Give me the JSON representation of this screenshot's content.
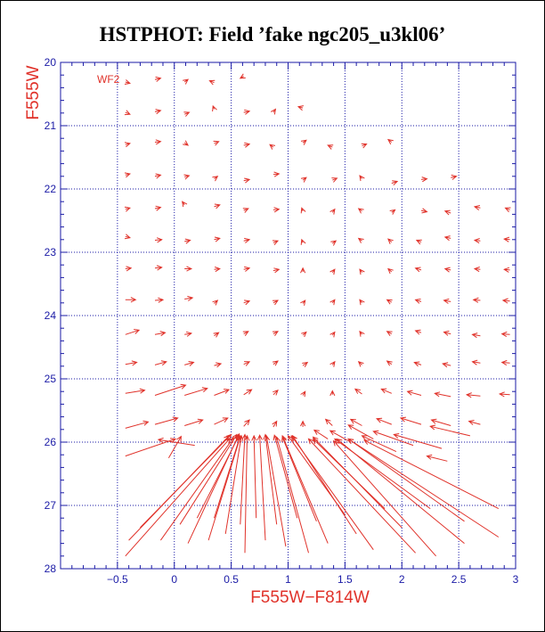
{
  "title": "HSTPHOT: Field ’fake ngc205_u3kl06’",
  "chart_data": {
    "type": "quiver",
    "title": "HSTPHOT: Field ’fake ngc205_u3kl06’",
    "xlabel": "F555W−F814W",
    "ylabel": "F555W",
    "panel_label": "WF2",
    "xlim": [
      -1.0,
      3.0
    ],
    "ylim": [
      28,
      20
    ],
    "y_inverted": true,
    "grid": true,
    "colors": {
      "axes": "#1a1aa6",
      "arrows": "#e0322a",
      "title": "#000000"
    },
    "x_ticks": [
      -0.5,
      0,
      0.5,
      1,
      1.5,
      2,
      2.5,
      3
    ],
    "x_tick_labels": [
      "−0.5",
      "0",
      "0.5",
      "1",
      "1.5",
      "2",
      "2.5",
      "3"
    ],
    "y_ticks": [
      20,
      21,
      22,
      23,
      24,
      25,
      26,
      27,
      28
    ],
    "y_tick_labels": [
      "20",
      "21",
      "22",
      "23",
      "24",
      "25",
      "26",
      "27",
      "28"
    ],
    "vectors": [
      {
        "x": -0.43,
        "y": 20.31,
        "dx": 0.04,
        "dy": 0.02
      },
      {
        "x": -0.17,
        "y": 20.27,
        "dx": 0.05,
        "dy": -0.02
      },
      {
        "x": 0.09,
        "y": 20.31,
        "dx": 0.03,
        "dy": -0.04
      },
      {
        "x": 0.35,
        "y": 20.32,
        "dx": -0.04,
        "dy": -0.03
      },
      {
        "x": 0.61,
        "y": 20.22,
        "dx": -0.03,
        "dy": 0.03
      },
      {
        "x": -0.43,
        "y": 20.79,
        "dx": 0.04,
        "dy": 0.03
      },
      {
        "x": -0.17,
        "y": 20.78,
        "dx": 0.05,
        "dy": -0.02
      },
      {
        "x": 0.09,
        "y": 20.82,
        "dx": 0.04,
        "dy": -0.03
      },
      {
        "x": 0.35,
        "y": 20.74,
        "dx": -0.01,
        "dy": -0.05
      },
      {
        "x": 0.61,
        "y": 20.79,
        "dx": 0.05,
        "dy": -0.02
      },
      {
        "x": 0.87,
        "y": 20.79,
        "dx": 0.02,
        "dy": -0.05
      },
      {
        "x": 1.13,
        "y": 20.72,
        "dx": -0.04,
        "dy": -0.02
      },
      {
        "x": -0.43,
        "y": 21.3,
        "dx": 0.04,
        "dy": -0.02
      },
      {
        "x": -0.17,
        "y": 21.26,
        "dx": 0.05,
        "dy": -0.01
      },
      {
        "x": 0.09,
        "y": 21.27,
        "dx": 0.03,
        "dy": 0.04
      },
      {
        "x": 0.35,
        "y": 21.28,
        "dx": 0.04,
        "dy": -0.03
      },
      {
        "x": 0.61,
        "y": 21.31,
        "dx": 0.05,
        "dy": -0.02
      },
      {
        "x": 0.87,
        "y": 21.34,
        "dx": -0.03,
        "dy": -0.04
      },
      {
        "x": 1.13,
        "y": 21.27,
        "dx": 0.03,
        "dy": -0.04
      },
      {
        "x": 1.39,
        "y": 21.34,
        "dx": -0.04,
        "dy": -0.03
      },
      {
        "x": 1.65,
        "y": 21.32,
        "dx": 0.04,
        "dy": -0.03
      },
      {
        "x": 1.91,
        "y": 21.26,
        "dx": -0.03,
        "dy": -0.04
      },
      {
        "x": -0.43,
        "y": 21.78,
        "dx": 0.04,
        "dy": -0.02
      },
      {
        "x": -0.17,
        "y": 21.8,
        "dx": 0.05,
        "dy": -0.02
      },
      {
        "x": 0.09,
        "y": 21.81,
        "dx": 0.04,
        "dy": -0.02
      },
      {
        "x": 0.35,
        "y": 21.84,
        "dx": 0.03,
        "dy": -0.04
      },
      {
        "x": 0.61,
        "y": 21.87,
        "dx": 0.05,
        "dy": -0.02
      },
      {
        "x": 0.87,
        "y": 21.77,
        "dx": 0.05,
        "dy": -0.01
      },
      {
        "x": 1.13,
        "y": 21.86,
        "dx": 0.03,
        "dy": -0.04
      },
      {
        "x": 1.39,
        "y": 21.86,
        "dx": 0.04,
        "dy": -0.03
      },
      {
        "x": 1.65,
        "y": 21.84,
        "dx": -0.02,
        "dy": -0.05
      },
      {
        "x": 1.91,
        "y": 21.91,
        "dx": 0.05,
        "dy": -0.03
      },
      {
        "x": 2.17,
        "y": 21.85,
        "dx": 0.05,
        "dy": -0.01
      },
      {
        "x": 2.43,
        "y": 21.82,
        "dx": 0.05,
        "dy": -0.02
      },
      {
        "x": -0.43,
        "y": 22.32,
        "dx": 0.04,
        "dy": -0.02
      },
      {
        "x": -0.17,
        "y": 22.31,
        "dx": 0.05,
        "dy": -0.02
      },
      {
        "x": 0.09,
        "y": 22.25,
        "dx": -0.02,
        "dy": -0.05
      },
      {
        "x": 0.35,
        "y": 22.28,
        "dx": 0.05,
        "dy": -0.03
      },
      {
        "x": 0.61,
        "y": 22.34,
        "dx": 0.04,
        "dy": -0.03
      },
      {
        "x": 0.87,
        "y": 22.33,
        "dx": 0.05,
        "dy": -0.01
      },
      {
        "x": 1.13,
        "y": 22.35,
        "dx": -0.01,
        "dy": -0.05
      },
      {
        "x": 1.39,
        "y": 22.37,
        "dx": 0.02,
        "dy": -0.05
      },
      {
        "x": 1.65,
        "y": 22.35,
        "dx": -0.03,
        "dy": -0.04
      },
      {
        "x": 1.91,
        "y": 22.37,
        "dx": 0.03,
        "dy": -0.04
      },
      {
        "x": 2.17,
        "y": 22.34,
        "dx": 0.05,
        "dy": 0.02
      },
      {
        "x": 2.43,
        "y": 22.38,
        "dx": -0.05,
        "dy": -0.03
      },
      {
        "x": 2.69,
        "y": 22.3,
        "dx": -0.05,
        "dy": -0.02
      },
      {
        "x": 2.95,
        "y": 22.33,
        "dx": -0.04,
        "dy": -0.03
      },
      {
        "x": -0.43,
        "y": 22.75,
        "dx": 0.04,
        "dy": 0.02
      },
      {
        "x": -0.17,
        "y": 22.81,
        "dx": 0.06,
        "dy": -0.01
      },
      {
        "x": 0.09,
        "y": 22.83,
        "dx": 0.05,
        "dy": -0.02
      },
      {
        "x": 0.35,
        "y": 22.8,
        "dx": 0.05,
        "dy": -0.02
      },
      {
        "x": 0.61,
        "y": 22.82,
        "dx": 0.05,
        "dy": -0.02
      },
      {
        "x": 0.87,
        "y": 22.85,
        "dx": 0.04,
        "dy": -0.03
      },
      {
        "x": 1.13,
        "y": 22.85,
        "dx": -0.01,
        "dy": -0.05
      },
      {
        "x": 1.39,
        "y": 22.86,
        "dx": 0.03,
        "dy": -0.04
      },
      {
        "x": 1.65,
        "y": 22.82,
        "dx": -0.03,
        "dy": -0.04
      },
      {
        "x": 1.91,
        "y": 22.84,
        "dx": -0.03,
        "dy": -0.05
      },
      {
        "x": 2.17,
        "y": 22.84,
        "dx": -0.04,
        "dy": -0.03
      },
      {
        "x": 2.43,
        "y": 22.78,
        "dx": -0.05,
        "dy": -0.02
      },
      {
        "x": 2.69,
        "y": 22.82,
        "dx": -0.05,
        "dy": -0.01
      },
      {
        "x": 2.95,
        "y": 22.8,
        "dx": -0.05,
        "dy": -0.01
      },
      {
        "x": -0.43,
        "y": 23.26,
        "dx": 0.05,
        "dy": -0.01
      },
      {
        "x": -0.17,
        "y": 23.25,
        "dx": 0.06,
        "dy": -0.01
      },
      {
        "x": 0.09,
        "y": 23.26,
        "dx": 0.06,
        "dy": 0.0
      },
      {
        "x": 0.35,
        "y": 23.27,
        "dx": 0.05,
        "dy": -0.01
      },
      {
        "x": 0.61,
        "y": 23.27,
        "dx": 0.05,
        "dy": -0.02
      },
      {
        "x": 0.87,
        "y": 23.29,
        "dx": 0.05,
        "dy": -0.02
      },
      {
        "x": 1.13,
        "y": 23.31,
        "dx": 0.0,
        "dy": -0.06
      },
      {
        "x": 1.39,
        "y": 23.32,
        "dx": 0.02,
        "dy": -0.05
      },
      {
        "x": 1.65,
        "y": 23.32,
        "dx": -0.02,
        "dy": -0.05
      },
      {
        "x": 1.91,
        "y": 23.31,
        "dx": -0.03,
        "dy": -0.05
      },
      {
        "x": 2.17,
        "y": 23.28,
        "dx": -0.05,
        "dy": -0.03
      },
      {
        "x": 2.43,
        "y": 23.28,
        "dx": -0.05,
        "dy": -0.02
      },
      {
        "x": 2.69,
        "y": 23.27,
        "dx": -0.05,
        "dy": -0.01
      },
      {
        "x": 2.95,
        "y": 23.28,
        "dx": -0.05,
        "dy": -0.01
      },
      {
        "x": -0.43,
        "y": 23.75,
        "dx": 0.09,
        "dy": 0.0
      },
      {
        "x": -0.17,
        "y": 23.76,
        "dx": 0.07,
        "dy": -0.01
      },
      {
        "x": 0.09,
        "y": 23.74,
        "dx": 0.07,
        "dy": -0.02
      },
      {
        "x": 0.35,
        "y": 23.81,
        "dx": 0.03,
        "dy": -0.05
      },
      {
        "x": 0.61,
        "y": 23.8,
        "dx": 0.05,
        "dy": -0.03
      },
      {
        "x": 0.87,
        "y": 23.8,
        "dx": 0.04,
        "dy": -0.04
      },
      {
        "x": 1.13,
        "y": 23.81,
        "dx": 0.02,
        "dy": -0.05
      },
      {
        "x": 1.39,
        "y": 23.8,
        "dx": 0.02,
        "dy": -0.05
      },
      {
        "x": 1.65,
        "y": 23.8,
        "dx": -0.02,
        "dy": -0.05
      },
      {
        "x": 1.91,
        "y": 23.79,
        "dx": -0.04,
        "dy": -0.04
      },
      {
        "x": 2.17,
        "y": 23.78,
        "dx": -0.05,
        "dy": -0.03
      },
      {
        "x": 2.43,
        "y": 23.78,
        "dx": -0.06,
        "dy": -0.02
      },
      {
        "x": 2.69,
        "y": 23.76,
        "dx": -0.06,
        "dy": -0.01
      },
      {
        "x": 2.95,
        "y": 23.77,
        "dx": -0.06,
        "dy": -0.01
      },
      {
        "x": -0.43,
        "y": 24.3,
        "dx": 0.12,
        "dy": -0.07
      },
      {
        "x": -0.17,
        "y": 24.3,
        "dx": 0.09,
        "dy": -0.03
      },
      {
        "x": 0.09,
        "y": 24.3,
        "dx": 0.06,
        "dy": -0.02
      },
      {
        "x": 0.35,
        "y": 24.32,
        "dx": 0.04,
        "dy": -0.05
      },
      {
        "x": 0.61,
        "y": 24.29,
        "dx": 0.04,
        "dy": -0.04
      },
      {
        "x": 0.87,
        "y": 24.29,
        "dx": 0.04,
        "dy": -0.04
      },
      {
        "x": 1.13,
        "y": 24.31,
        "dx": 0.03,
        "dy": -0.05
      },
      {
        "x": 1.39,
        "y": 24.31,
        "dx": 0.02,
        "dy": -0.05
      },
      {
        "x": 1.65,
        "y": 24.3,
        "dx": -0.02,
        "dy": -0.05
      },
      {
        "x": 1.91,
        "y": 24.29,
        "dx": -0.04,
        "dy": -0.04
      },
      {
        "x": 2.17,
        "y": 24.27,
        "dx": -0.05,
        "dy": -0.03
      },
      {
        "x": 2.43,
        "y": 24.29,
        "dx": -0.06,
        "dy": -0.03
      },
      {
        "x": 2.69,
        "y": 24.32,
        "dx": -0.07,
        "dy": -0.02
      },
      {
        "x": 2.95,
        "y": 24.3,
        "dx": -0.07,
        "dy": -0.01
      },
      {
        "x": -0.43,
        "y": 24.77,
        "dx": 0.1,
        "dy": -0.03
      },
      {
        "x": -0.17,
        "y": 24.78,
        "dx": 0.1,
        "dy": -0.05
      },
      {
        "x": 0.09,
        "y": 24.78,
        "dx": 0.08,
        "dy": -0.04
      },
      {
        "x": 0.35,
        "y": 24.79,
        "dx": 0.06,
        "dy": -0.03
      },
      {
        "x": 0.61,
        "y": 24.77,
        "dx": 0.05,
        "dy": -0.04
      },
      {
        "x": 0.87,
        "y": 24.77,
        "dx": 0.04,
        "dy": -0.05
      },
      {
        "x": 1.13,
        "y": 24.79,
        "dx": 0.04,
        "dy": -0.05
      },
      {
        "x": 1.39,
        "y": 24.78,
        "dx": 0.02,
        "dy": -0.05
      },
      {
        "x": 1.65,
        "y": 24.78,
        "dx": -0.03,
        "dy": -0.05
      },
      {
        "x": 1.91,
        "y": 24.77,
        "dx": -0.04,
        "dy": -0.05
      },
      {
        "x": 2.17,
        "y": 24.78,
        "dx": -0.06,
        "dy": -0.04
      },
      {
        "x": 2.43,
        "y": 24.79,
        "dx": -0.07,
        "dy": -0.03
      },
      {
        "x": 2.69,
        "y": 24.75,
        "dx": -0.07,
        "dy": -0.02
      },
      {
        "x": 2.95,
        "y": 24.75,
        "dx": -0.07,
        "dy": -0.01
      },
      {
        "x": -0.43,
        "y": 25.23,
        "dx": 0.17,
        "dy": -0.05
      },
      {
        "x": -0.17,
        "y": 25.26,
        "dx": 0.27,
        "dy": -0.16
      },
      {
        "x": 0.09,
        "y": 25.26,
        "dx": 0.2,
        "dy": -0.11
      },
      {
        "x": 0.35,
        "y": 25.26,
        "dx": 0.13,
        "dy": -0.09
      },
      {
        "x": 0.61,
        "y": 25.25,
        "dx": 0.07,
        "dy": -0.08
      },
      {
        "x": 0.87,
        "y": 25.25,
        "dx": 0.04,
        "dy": -0.07
      },
      {
        "x": 1.13,
        "y": 25.26,
        "dx": 0.02,
        "dy": -0.06
      },
      {
        "x": 1.39,
        "y": 25.25,
        "dx": 0.0,
        "dy": -0.06
      },
      {
        "x": 1.65,
        "y": 25.24,
        "dx": -0.06,
        "dy": -0.08
      },
      {
        "x": 1.91,
        "y": 25.23,
        "dx": -0.09,
        "dy": -0.07
      },
      {
        "x": 2.17,
        "y": 25.26,
        "dx": -0.12,
        "dy": -0.06
      },
      {
        "x": 2.43,
        "y": 25.28,
        "dx": -0.14,
        "dy": -0.05
      },
      {
        "x": 2.69,
        "y": 25.27,
        "dx": -0.12,
        "dy": -0.02
      },
      {
        "x": 2.95,
        "y": 25.25,
        "dx": -0.09,
        "dy": -0.01
      },
      {
        "x": -0.43,
        "y": 25.78,
        "dx": 0.2,
        "dy": -0.1
      },
      {
        "x": -0.17,
        "y": 25.72,
        "dx": 0.2,
        "dy": -0.1
      },
      {
        "x": 0.09,
        "y": 25.74,
        "dx": 0.16,
        "dy": -0.09
      },
      {
        "x": 0.35,
        "y": 25.72,
        "dx": 0.12,
        "dy": -0.1
      },
      {
        "x": 0.61,
        "y": 25.75,
        "dx": 0.05,
        "dy": -0.1
      },
      {
        "x": 0.87,
        "y": 25.76,
        "dx": 0.03,
        "dy": -0.09
      },
      {
        "x": 1.13,
        "y": 25.76,
        "dx": 0.0,
        "dy": -0.09
      },
      {
        "x": 1.39,
        "y": 25.74,
        "dx": -0.06,
        "dy": -0.1
      },
      {
        "x": 1.65,
        "y": 25.74,
        "dx": -0.1,
        "dy": -0.1
      },
      {
        "x": 1.91,
        "y": 25.72,
        "dx": -0.13,
        "dy": -0.09
      },
      {
        "x": 2.17,
        "y": 25.72,
        "dx": -0.18,
        "dy": -0.1
      },
      {
        "x": 2.43,
        "y": 25.74,
        "dx": -0.17,
        "dy": -0.09
      },
      {
        "x": 2.69,
        "y": 25.72,
        "dx": -0.1,
        "dy": -0.05
      },
      {
        "x": -0.43,
        "y": 26.22,
        "dx": 0.44,
        "dy": -0.27
      },
      {
        "x": -0.05,
        "y": 26.25,
        "dx": 0.11,
        "dy": -0.34
      },
      {
        "x": 0.18,
        "y": 26.05,
        "dx": -0.32,
        "dy": -0.09
      },
      {
        "x": -0.43,
        "y": 27.8,
        "dx": 0.92,
        "dy": -1.86
      },
      {
        "x": -0.4,
        "y": 27.55,
        "dx": 0.88,
        "dy": -1.65
      },
      {
        "x": -0.3,
        "y": 27.35,
        "dx": 0.8,
        "dy": -1.47
      },
      {
        "x": -0.12,
        "y": 27.55,
        "dx": 0.64,
        "dy": -1.62
      },
      {
        "x": 0.05,
        "y": 27.3,
        "dx": 0.5,
        "dy": -1.42
      },
      {
        "x": 0.12,
        "y": 27.6,
        "dx": 0.45,
        "dy": -1.73
      },
      {
        "x": 0.2,
        "y": 27.2,
        "dx": 0.37,
        "dy": -1.31
      },
      {
        "x": 0.3,
        "y": 27.55,
        "dx": 0.28,
        "dy": -1.63
      },
      {
        "x": 0.35,
        "y": 27.2,
        "dx": 0.23,
        "dy": -1.3
      },
      {
        "x": 0.45,
        "y": 27.45,
        "dx": 0.14,
        "dy": -1.55
      },
      {
        "x": 0.58,
        "y": 27.3,
        "dx": 0.04,
        "dy": -1.42
      },
      {
        "x": 0.62,
        "y": 27.75,
        "dx": 0.02,
        "dy": -1.85
      },
      {
        "x": 0.72,
        "y": 27.2,
        "dx": -0.02,
        "dy": -1.3
      },
      {
        "x": 0.8,
        "y": 27.55,
        "dx": -0.05,
        "dy": -1.66
      },
      {
        "x": 0.9,
        "y": 27.3,
        "dx": -0.1,
        "dy": -1.42
      },
      {
        "x": 0.98,
        "y": 27.65,
        "dx": -0.17,
        "dy": -1.75
      },
      {
        "x": 1.08,
        "y": 27.2,
        "dx": -0.2,
        "dy": -1.31
      },
      {
        "x": 1.18,
        "y": 27.75,
        "dx": -0.28,
        "dy": -1.83
      },
      {
        "x": 1.25,
        "y": 27.25,
        "dx": -0.3,
        "dy": -1.33
      },
      {
        "x": 1.35,
        "y": 27.6,
        "dx": -0.4,
        "dy": -1.7
      },
      {
        "x": 1.5,
        "y": 27.15,
        "dx": -0.5,
        "dy": -1.25
      },
      {
        "x": 1.6,
        "y": 27.45,
        "dx": -0.56,
        "dy": -1.55
      },
      {
        "x": 1.75,
        "y": 27.7,
        "dx": -0.72,
        "dy": -1.8
      },
      {
        "x": 1.85,
        "y": 27.05,
        "dx": -0.63,
        "dy": -1.1
      },
      {
        "x": 2.0,
        "y": 27.35,
        "dx": -0.78,
        "dy": -1.43
      },
      {
        "x": 2.12,
        "y": 27.75,
        "dx": -0.94,
        "dy": -1.8
      },
      {
        "x": 2.25,
        "y": 27.05,
        "dx": -0.84,
        "dy": -1.1
      },
      {
        "x": 2.3,
        "y": 27.8,
        "dx": -0.9,
        "dy": -1.82
      },
      {
        "x": 2.55,
        "y": 27.25,
        "dx": -1.02,
        "dy": -1.3
      },
      {
        "x": 2.55,
        "y": 27.6,
        "dx": -1.12,
        "dy": -1.65
      },
      {
        "x": 2.85,
        "y": 27.05,
        "dx": -1.18,
        "dy": -1.08
      },
      {
        "x": 2.85,
        "y": 27.5,
        "dx": -1.32,
        "dy": -1.55
      },
      {
        "x": 1.95,
        "y": 26.15,
        "dx": -0.3,
        "dy": -0.25
      },
      {
        "x": 2.1,
        "y": 26.05,
        "dx": -0.35,
        "dy": -0.22
      },
      {
        "x": 2.35,
        "y": 26.1,
        "dx": -0.42,
        "dy": -0.22
      },
      {
        "x": 2.4,
        "y": 26.3,
        "dx": -0.18,
        "dy": -0.08
      },
      {
        "x": 2.6,
        "y": 25.9,
        "dx": -0.35,
        "dy": -0.15
      },
      {
        "x": 1.75,
        "y": 25.95,
        "dx": -0.22,
        "dy": -0.22
      },
      {
        "x": 1.55,
        "y": 26.0,
        "dx": -0.18,
        "dy": -0.18
      },
      {
        "x": 1.35,
        "y": 25.95,
        "dx": -0.12,
        "dy": -0.14
      }
    ]
  }
}
